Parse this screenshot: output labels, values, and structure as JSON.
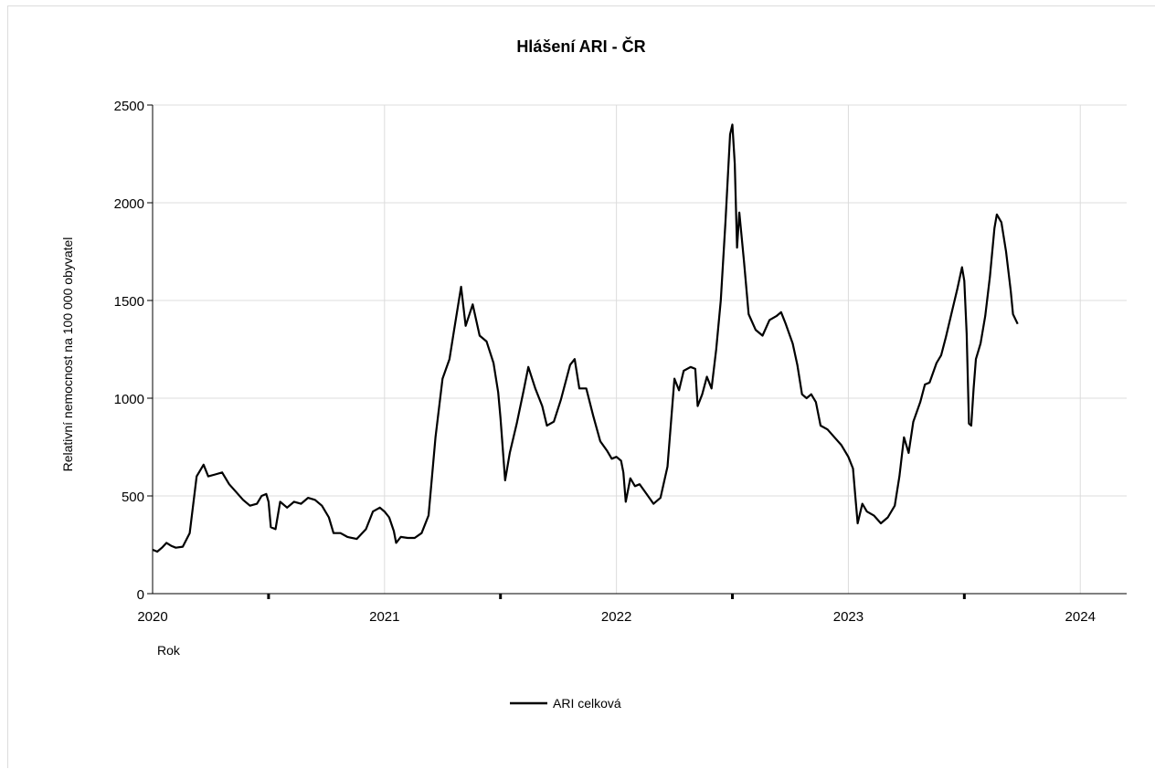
{
  "chart_data": {
    "type": "line",
    "title": "Hlášení ARI - ČR",
    "xlabel": "Rok",
    "ylabel": "Relativní nemocnost na 100 000 obyvatel",
    "xlim": [
      2020.0,
      2024.2
    ],
    "ylim": [
      0,
      2500
    ],
    "x_ticks": [
      2020,
      2021,
      2022,
      2023,
      2024
    ],
    "x_minor_ticks": [
      2020.5,
      2021.5,
      2022.5,
      2023.5
    ],
    "y_ticks": [
      0,
      500,
      1000,
      1500,
      2000,
      2500
    ],
    "grid": true,
    "legend_position": "bottom-center",
    "series": [
      {
        "name": "ARI celková",
        "color": "#000000",
        "points": [
          [
            2020.0,
            225
          ],
          [
            2020.02,
            215
          ],
          [
            2020.04,
            235
          ],
          [
            2020.06,
            260
          ],
          [
            2020.08,
            245
          ],
          [
            2020.1,
            235
          ],
          [
            2020.13,
            240
          ],
          [
            2020.16,
            310
          ],
          [
            2020.19,
            600
          ],
          [
            2020.22,
            660
          ],
          [
            2020.24,
            600
          ],
          [
            2020.27,
            610
          ],
          [
            2020.3,
            620
          ],
          [
            2020.33,
            560
          ],
          [
            2020.36,
            520
          ],
          [
            2020.39,
            480
          ],
          [
            2020.42,
            450
          ],
          [
            2020.45,
            460
          ],
          [
            2020.47,
            500
          ],
          [
            2020.49,
            510
          ],
          [
            2020.5,
            470
          ],
          [
            2020.51,
            340
          ],
          [
            2020.53,
            330
          ],
          [
            2020.55,
            470
          ],
          [
            2020.58,
            440
          ],
          [
            2020.61,
            470
          ],
          [
            2020.64,
            460
          ],
          [
            2020.67,
            490
          ],
          [
            2020.7,
            480
          ],
          [
            2020.73,
            450
          ],
          [
            2020.76,
            390
          ],
          [
            2020.78,
            310
          ],
          [
            2020.81,
            310
          ],
          [
            2020.84,
            290
          ],
          [
            2020.88,
            280
          ],
          [
            2020.92,
            330
          ],
          [
            2020.95,
            420
          ],
          [
            2020.98,
            440
          ],
          [
            2021.0,
            420
          ],
          [
            2021.02,
            390
          ],
          [
            2021.04,
            320
          ],
          [
            2021.05,
            260
          ],
          [
            2021.07,
            290
          ],
          [
            2021.1,
            285
          ],
          [
            2021.13,
            285
          ],
          [
            2021.16,
            310
          ],
          [
            2021.19,
            400
          ],
          [
            2021.22,
            800
          ],
          [
            2021.25,
            1100
          ],
          [
            2021.28,
            1200
          ],
          [
            2021.3,
            1350
          ],
          [
            2021.33,
            1570
          ],
          [
            2021.35,
            1370
          ],
          [
            2021.38,
            1480
          ],
          [
            2021.41,
            1320
          ],
          [
            2021.44,
            1290
          ],
          [
            2021.47,
            1180
          ],
          [
            2021.49,
            1030
          ],
          [
            2021.5,
            900
          ],
          [
            2021.52,
            580
          ],
          [
            2021.54,
            720
          ],
          [
            2021.57,
            870
          ],
          [
            2021.6,
            1040
          ],
          [
            2021.62,
            1160
          ],
          [
            2021.65,
            1050
          ],
          [
            2021.68,
            960
          ],
          [
            2021.7,
            860
          ],
          [
            2021.73,
            880
          ],
          [
            2021.76,
            990
          ],
          [
            2021.8,
            1170
          ],
          [
            2021.82,
            1200
          ],
          [
            2021.84,
            1050
          ],
          [
            2021.87,
            1050
          ],
          [
            2021.9,
            910
          ],
          [
            2021.93,
            780
          ],
          [
            2021.96,
            730
          ],
          [
            2021.98,
            690
          ],
          [
            2022.0,
            700
          ],
          [
            2022.02,
            680
          ],
          [
            2022.03,
            620
          ],
          [
            2022.04,
            470
          ],
          [
            2022.06,
            590
          ],
          [
            2022.08,
            550
          ],
          [
            2022.1,
            560
          ],
          [
            2022.13,
            510
          ],
          [
            2022.16,
            460
          ],
          [
            2022.19,
            490
          ],
          [
            2022.22,
            650
          ],
          [
            2022.25,
            1100
          ],
          [
            2022.27,
            1040
          ],
          [
            2022.29,
            1140
          ],
          [
            2022.32,
            1160
          ],
          [
            2022.34,
            1150
          ],
          [
            2022.35,
            960
          ],
          [
            2022.37,
            1020
          ],
          [
            2022.39,
            1110
          ],
          [
            2022.41,
            1050
          ],
          [
            2022.43,
            1250
          ],
          [
            2022.45,
            1500
          ],
          [
            2022.47,
            1900
          ],
          [
            2022.49,
            2350
          ],
          [
            2022.5,
            2400
          ],
          [
            2022.51,
            2200
          ],
          [
            2022.52,
            1770
          ],
          [
            2022.53,
            1950
          ],
          [
            2022.55,
            1700
          ],
          [
            2022.57,
            1430
          ],
          [
            2022.6,
            1350
          ],
          [
            2022.63,
            1320
          ],
          [
            2022.66,
            1400
          ],
          [
            2022.69,
            1420
          ],
          [
            2022.71,
            1440
          ],
          [
            2022.73,
            1380
          ],
          [
            2022.76,
            1280
          ],
          [
            2022.78,
            1170
          ],
          [
            2022.8,
            1020
          ],
          [
            2022.82,
            1000
          ],
          [
            2022.84,
            1020
          ],
          [
            2022.86,
            980
          ],
          [
            2022.88,
            860
          ],
          [
            2022.91,
            840
          ],
          [
            2022.94,
            800
          ],
          [
            2022.97,
            760
          ],
          [
            2023.0,
            700
          ],
          [
            2023.02,
            640
          ],
          [
            2023.03,
            500
          ],
          [
            2023.04,
            360
          ],
          [
            2023.06,
            460
          ],
          [
            2023.08,
            420
          ],
          [
            2023.11,
            400
          ],
          [
            2023.14,
            360
          ],
          [
            2023.17,
            390
          ],
          [
            2023.2,
            450
          ],
          [
            2023.22,
            600
          ],
          [
            2023.24,
            800
          ],
          [
            2023.26,
            720
          ],
          [
            2023.28,
            880
          ],
          [
            2023.31,
            980
          ],
          [
            2023.33,
            1070
          ],
          [
            2023.35,
            1080
          ],
          [
            2023.38,
            1180
          ],
          [
            2023.4,
            1220
          ],
          [
            2023.42,
            1310
          ],
          [
            2023.45,
            1460
          ],
          [
            2023.47,
            1560
          ],
          [
            2023.49,
            1670
          ],
          [
            2023.5,
            1600
          ],
          [
            2023.51,
            1330
          ],
          [
            2023.52,
            870
          ],
          [
            2023.53,
            860
          ],
          [
            2023.54,
            1050
          ],
          [
            2023.55,
            1200
          ],
          [
            2023.57,
            1280
          ],
          [
            2023.59,
            1420
          ],
          [
            2023.61,
            1620
          ],
          [
            2023.63,
            1870
          ],
          [
            2023.64,
            1940
          ],
          [
            2023.66,
            1900
          ],
          [
            2023.68,
            1750
          ],
          [
            2023.7,
            1550
          ],
          [
            2023.71,
            1430
          ],
          [
            2023.73,
            1380
          ]
        ]
      }
    ]
  }
}
